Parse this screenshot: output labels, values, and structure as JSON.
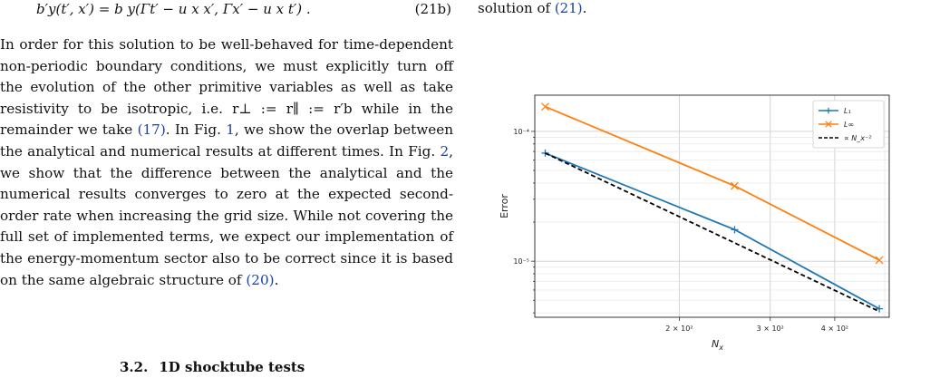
{
  "equation": {
    "lhs": "b′y(t′, x′) = b y(Γt′ − u x x′, Γx′ − u x t′) .",
    "number": "(21b)"
  },
  "right_fragment": {
    "prefix": "solution of ",
    "ref": "(21)",
    "suffix": "."
  },
  "paragraph": [
    {
      "t": "In order for this solution to be well-behaved for time-dependent non-periodic boundary conditions, we must explicitly turn off the evolution of the other primitive variables as well as take resistivity to be isotropic, i.e. r⊥ := r∥ := r′b while in the remainder we take "
    },
    {
      "ref": "(17)"
    },
    {
      "t": ". In Fig. "
    },
    {
      "ref": "1"
    },
    {
      "t": ", we show the overlap between the analytical and numerical results at different times. In Fig. "
    },
    {
      "ref": "2"
    },
    {
      "t": ", we show that the difference between the analytical and the numerical results converges to zero at the expected second-order rate when increasing the grid size. While not covering the full set of implemented terms, we expect our implementation of the energy-momentum sector also to be correct since it is based on the same algebraic structure of "
    },
    {
      "ref": "(20)"
    },
    {
      "t": "."
    }
  ],
  "section": {
    "number": "3.2.",
    "title": "1D shocktube tests"
  },
  "chart_data": {
    "type": "line",
    "xlabel": "N_x",
    "ylabel": "Error",
    "x_scale": "log",
    "y_scale": "log",
    "xlim": [
      105,
      510
    ],
    "ylim": [
      3.7e-06,
      0.00019
    ],
    "xticks": [
      {
        "value": 200,
        "label": "2 × 10²"
      },
      {
        "value": 300,
        "label": "3 × 10²"
      },
      {
        "value": 400,
        "label": "4 × 10²"
      }
    ],
    "yticks": [
      {
        "value": 0.0001,
        "label": "10⁻⁴"
      },
      {
        "value": 1e-05,
        "label": "10⁻⁵"
      }
    ],
    "grid": true,
    "legend_position": "top-right",
    "series": [
      {
        "name": "L₁",
        "color": "#1f77b4",
        "marker": "plus",
        "x": [
          110,
          256,
          488
        ],
        "y": [
          6.8e-05,
          1.75e-05,
          4.3e-06
        ]
      },
      {
        "name": "L∞",
        "color": "#ff7f0e",
        "marker": "cross",
        "x": [
          110,
          256,
          488
        ],
        "y": [
          0.000155,
          3.8e-05,
          1.02e-05
        ]
      },
      {
        "name": "∝ N_x⁻²",
        "color": "#000000",
        "dash": true,
        "x": [
          110,
          488
        ],
        "y": [
          6.8e-05,
          4.1e-06
        ]
      }
    ]
  }
}
